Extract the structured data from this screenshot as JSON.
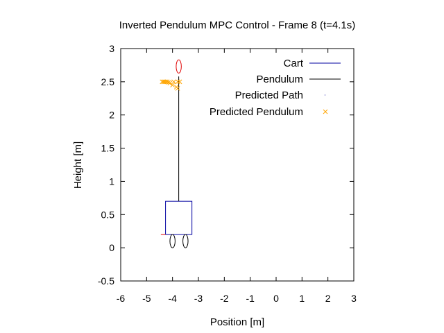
{
  "chart_data": {
    "type": "scatter",
    "title": "Inverted Pendulum MPC Control - Frame 8 (t=4.1s)",
    "xlabel": "Position [m]",
    "ylabel": "Height [m]",
    "xlim": [
      -6,
      3
    ],
    "ylim": [
      -0.5,
      3
    ],
    "x_ticks": [
      "-6",
      "-5",
      "-4",
      "-3",
      "-2",
      "-1",
      "0",
      "1",
      "2",
      "3"
    ],
    "y_ticks": [
      "-0.5",
      "0",
      "0.5",
      "1",
      "1.5",
      "2",
      "2.5",
      "3"
    ],
    "grid": false,
    "legend_position": "top-right",
    "legend": [
      {
        "label": "Cart",
        "style": "line",
        "color": "#0000a0"
      },
      {
        "label": "Pendulum",
        "style": "line",
        "color": "#000000"
      },
      {
        "label": "Predicted Path",
        "style": "dot",
        "color": "#0000a0"
      },
      {
        "label": "Predicted Pendulum",
        "style": "x",
        "color": "#ffa500"
      }
    ],
    "cart": {
      "x_min": -4.27,
      "x_max": -3.25,
      "y_min": 0.2,
      "y_max": 0.7,
      "color": "#0000a0"
    },
    "wheels": [
      {
        "x": -4.0,
        "y": 0.1,
        "rx": 0.1,
        "ry": 0.1
      },
      {
        "x": -3.5,
        "y": 0.1,
        "rx": 0.1,
        "ry": 0.1
      }
    ],
    "pendulum": {
      "x1": -3.76,
      "y1": 0.7,
      "x2": -3.76,
      "y2": 2.58,
      "color": "#000000"
    },
    "bob": {
      "x": -3.76,
      "y": 2.73,
      "rx": 0.1,
      "ry": 0.1,
      "color": "#e00000"
    },
    "rail_marker": {
      "x1": -4.45,
      "x2": -4.27,
      "y": 0.2,
      "color": "#e00000"
    },
    "predicted_pendulum": {
      "color": "#ffa500",
      "points": [
        [
          -4.4,
          2.5
        ],
        [
          -4.35,
          2.5
        ],
        [
          -4.3,
          2.5
        ],
        [
          -4.25,
          2.5
        ],
        [
          -4.2,
          2.5
        ],
        [
          -4.15,
          2.49
        ],
        [
          -4.1,
          2.48
        ],
        [
          -3.95,
          2.5
        ],
        [
          -3.8,
          2.5
        ],
        [
          -3.72,
          2.5
        ],
        [
          -3.85,
          2.42
        ],
        [
          -3.8,
          2.4
        ],
        [
          -4.0,
          2.45
        ]
      ]
    }
  }
}
